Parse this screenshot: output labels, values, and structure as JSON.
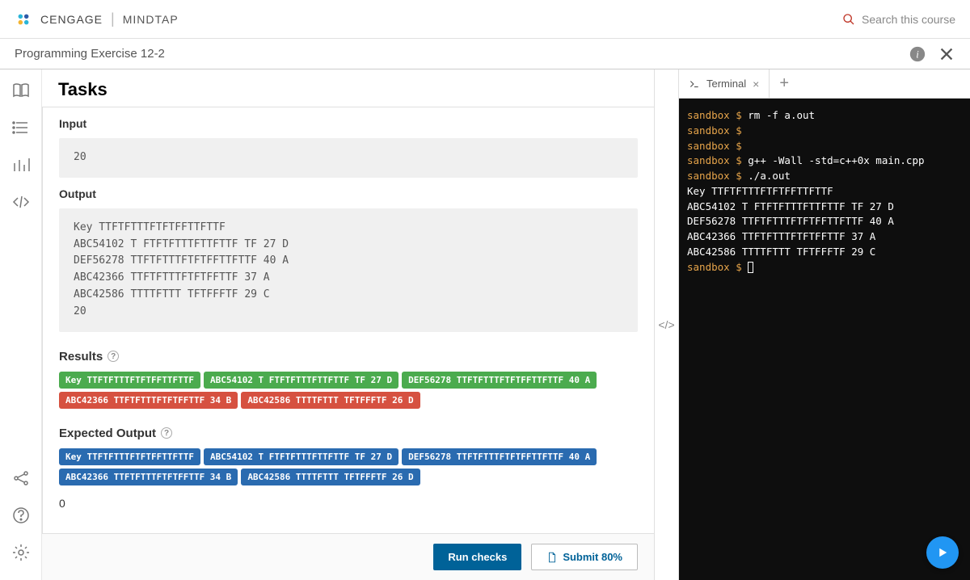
{
  "brand": {
    "name1": "CENGAGE",
    "name2": "MINDTAP"
  },
  "search": {
    "placeholder": "Search this course"
  },
  "subheader": {
    "title": "Programming Exercise 12-2"
  },
  "tasks": {
    "title": "Tasks",
    "input_label": "Input",
    "input_value": "20",
    "output_label": "Output",
    "output_lines": [
      "Key TTFTFTTTFTFTFFTTFTTF",
      "ABC54102 T FTFTFTTTFTTFTTF TF 27 D",
      "DEF56278 TTFTFTTTFTFTFFTTFTTF 40 A",
      "ABC42366 TTFTFTTTFTFTFFTTF 37 A",
      "ABC42586 TTTTFTTT TFTFFFTF 29 C",
      "20"
    ],
    "results_label": "Results",
    "results_chips": [
      {
        "text": "Key TTFTFTTTFTFTFFTTFTTF",
        "color": "green"
      },
      {
        "text": "ABC54102 T FTFTFTTTFTTFTTF TF 27 D",
        "color": "green"
      },
      {
        "text": "DEF56278 TTFTFTTTFTFTFFTTFTTF 40 A",
        "color": "green"
      },
      {
        "text": "ABC42366 TTFTFTTTFTFTFFTTF 34 B",
        "color": "red"
      },
      {
        "text": "ABC42586 TTTTFTTT TFTFFFTF 26 D",
        "color": "red"
      }
    ],
    "expected_label": "Expected Output",
    "expected_chips": [
      {
        "text": "Key TTFTFTTTFTFTFFTTFTTF",
        "color": "blue"
      },
      {
        "text": "ABC54102 T FTFTFTTTFTTFTTF TF 27 D",
        "color": "blue"
      },
      {
        "text": "DEF56278 TTFTFTTTFTFTFFTTFTTF 40 A",
        "color": "blue"
      },
      {
        "text": "ABC42366 TTFTFTTTFTFTFFTTF 34 B",
        "color": "blue"
      },
      {
        "text": "ABC42586 TTTTFTTT TFTFFFTF 26 D",
        "color": "blue"
      }
    ],
    "trailing_value": "0",
    "run_label": "Run checks",
    "submit_label": "Submit 80%"
  },
  "terminal": {
    "tab_label": "Terminal",
    "lines": [
      {
        "prompt": "sandbox $ ",
        "cmd": "rm -f a.out"
      },
      {
        "prompt": "sandbox $ ",
        "cmd": ""
      },
      {
        "prompt": "sandbox $ ",
        "cmd": ""
      },
      {
        "prompt": "sandbox $ ",
        "cmd": "g++ -Wall -std=c++0x main.cpp"
      },
      {
        "prompt": "sandbox $ ",
        "cmd": "./a.out"
      },
      {
        "out": "Key TTFTFTTTFTFTFFTTFTTF"
      },
      {
        "out": "ABC54102 T FTFTFTTTFTTFTTF TF 27 D"
      },
      {
        "out": "DEF56278 TTFTFTTTFTFTFFTTFTTF 40 A"
      },
      {
        "out": "ABC42366 TTFTFTTTFTFTFFTTF 37 A"
      },
      {
        "out": "ABC42586 TTTTFTTT TFTFFFTF 29 C"
      },
      {
        "prompt": "sandbox $ ",
        "cursor": true
      }
    ]
  }
}
